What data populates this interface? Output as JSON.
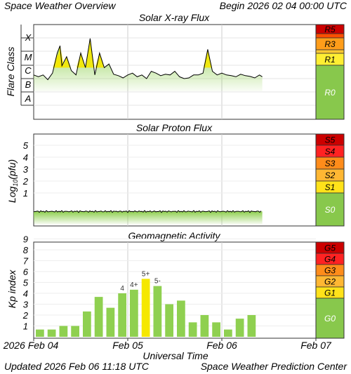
{
  "header": {
    "left": "Space Weather Overview",
    "right": "Begin 2026 02 04 00:00 UTC"
  },
  "footer": {
    "left": "Updated 2026 Feb 06 11:18 UTC",
    "right": "Space Weather Prediction Center"
  },
  "colors": {
    "green": "#8fd050",
    "yellow": "#f5e800",
    "r_levels": [
      "#ffff99",
      "#ffb733",
      "#ff7a1a",
      "#ff3300",
      "#cc0000"
    ],
    "scale_fill": [
      "#cc0000",
      "#ff2222",
      "#ff8c1a",
      "#ffb733",
      "#ffe21a",
      "#88c84c"
    ],
    "line": "#000000"
  },
  "chart_data": [
    {
      "type": "area",
      "title": "Solar X-ray Flux",
      "ylabel": "Flare Class",
      "yticks": [
        "A",
        "B",
        "C",
        "M",
        "X"
      ],
      "scale_labels": [
        "R5",
        "R3",
        "R1",
        "R0"
      ],
      "x_range_days": [
        0,
        3
      ],
      "series": [
        {
          "x": [
            0.0,
            0.05,
            0.1,
            0.15,
            0.2,
            0.25,
            0.28,
            0.3,
            0.35,
            0.4,
            0.45,
            0.5,
            0.55,
            0.6,
            0.65,
            0.7,
            0.75,
            0.8,
            0.85,
            0.9,
            0.95,
            1.0,
            1.05,
            1.1,
            1.15,
            1.2,
            1.25,
            1.3,
            1.35,
            1.4,
            1.45,
            1.5,
            1.55,
            1.6,
            1.65,
            1.7,
            1.75,
            1.8,
            1.85,
            1.9,
            1.95,
            2.0,
            2.05,
            2.1,
            2.15,
            2.2,
            2.25,
            2.3,
            2.35,
            2.4,
            2.43
          ],
          "values": [
            0.06,
            0.055,
            0.06,
            0.047,
            0.065,
            0.12,
            0.14,
            0.085,
            0.11,
            0.072,
            0.06,
            0.12,
            0.08,
            0.16,
            0.06,
            0.12,
            0.08,
            0.09,
            0.062,
            0.058,
            0.052,
            0.06,
            0.065,
            0.055,
            0.06,
            0.05,
            0.07,
            0.065,
            0.058,
            0.062,
            0.06,
            0.07,
            0.055,
            0.05,
            0.052,
            0.06,
            0.06,
            0.065,
            0.13,
            0.07,
            0.06,
            0.065,
            0.06,
            0.058,
            0.055,
            0.062,
            0.058,
            0.056,
            0.052,
            0.06,
            0.055
          ]
        }
      ]
    },
    {
      "type": "area",
      "title": "Solar Proton Flux",
      "ylabel": "Log10(pfu)",
      "ylabel_parts": [
        "Log",
        "10",
        "(pfu)"
      ],
      "yticks": [
        "1",
        "2",
        "3",
        "4",
        "5"
      ],
      "scale_labels": [
        "S5",
        "S4",
        "S3",
        "S2",
        "S1",
        "S0"
      ],
      "x_range_days": [
        0,
        3
      ],
      "series": [
        {
          "x": [
            0,
            2.43
          ],
          "values": [
            -0.55,
            -0.55
          ]
        }
      ]
    },
    {
      "type": "bar",
      "title": "Geomagnetic Activity",
      "ylabel": "Kp index",
      "yticks": [
        "1",
        "2",
        "3",
        "4",
        "5",
        "6",
        "7",
        "8",
        "9"
      ],
      "scale_labels": [
        "G5",
        "G4",
        "G3",
        "G2",
        "G1",
        "G0"
      ],
      "ylim": [
        0,
        9.5
      ],
      "values": [
        0.67,
        0.67,
        1.0,
        1.0,
        2.33,
        3.67,
        2.67,
        4.0,
        4.33,
        5.33,
        4.67,
        3.0,
        3.33,
        1.33,
        2.0,
        1.33,
        0.67,
        1.67,
        2.0
      ],
      "bar_labels": [
        "",
        "",
        "",
        "",
        "",
        "",
        "",
        "4",
        "4+",
        "5+",
        "5-",
        "",
        "",
        "",
        "",
        "",
        "",
        "",
        ""
      ]
    }
  ],
  "xaxis": {
    "title": "Universal Time",
    "ticks": [
      "2026 Feb 04",
      "Feb 05",
      "Feb 06",
      "Feb 07"
    ]
  }
}
